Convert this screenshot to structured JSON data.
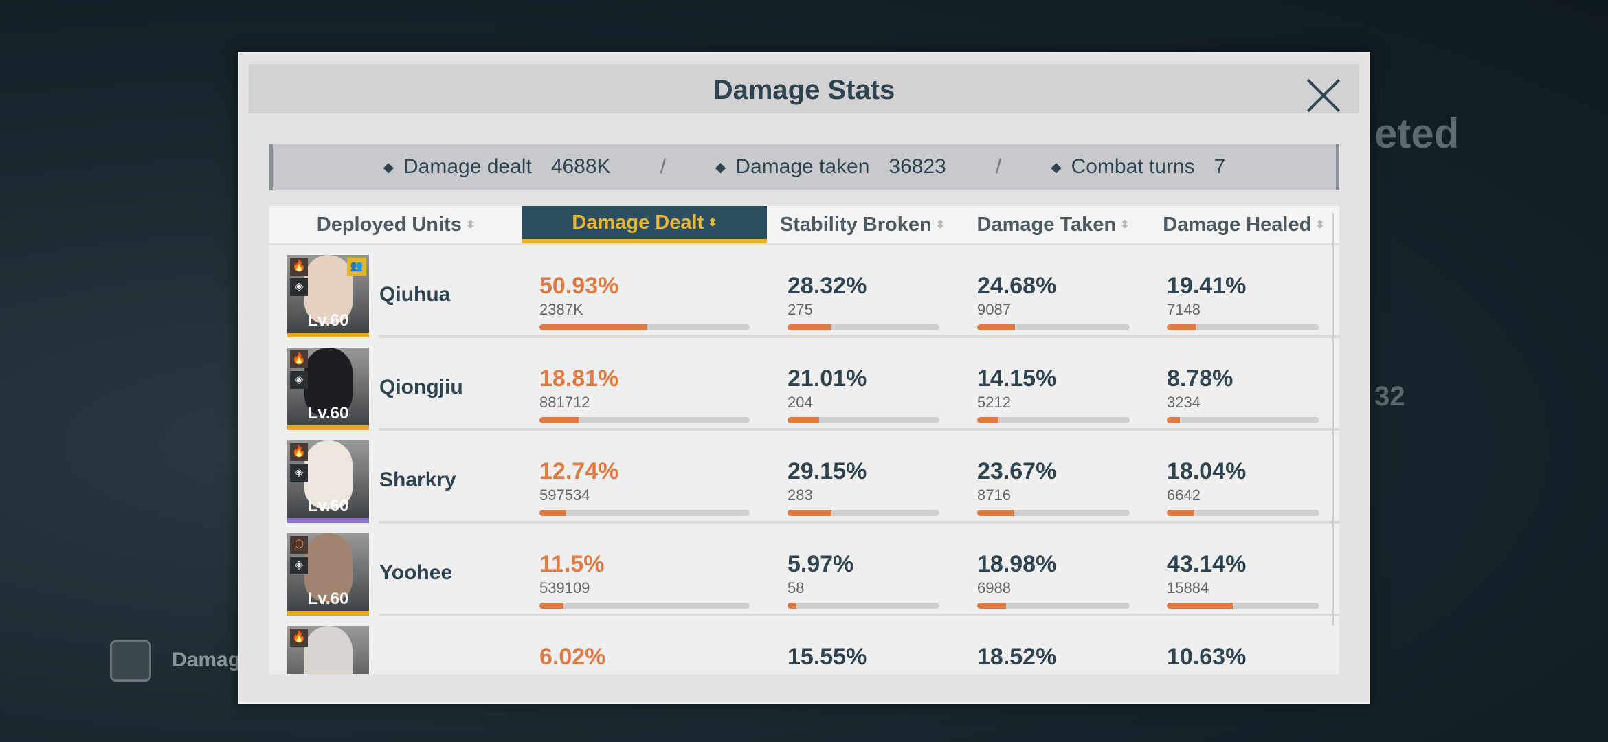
{
  "background": {
    "completed_text": "eted",
    "stat_text": "32",
    "damage_button_label": "Damag"
  },
  "modal": {
    "title": "Damage Stats",
    "summary": [
      {
        "label": "Damage dealt",
        "value": "4688K"
      },
      {
        "label": "Damage taken",
        "value": "36823"
      },
      {
        "label": "Combat turns",
        "value": "7"
      }
    ],
    "separator": "/",
    "columns": [
      "Deployed Units",
      "Damage Dealt",
      "Stability Broken",
      "Damage Taken",
      "Damage Healed"
    ],
    "active_column": 1,
    "units": [
      {
        "name": "Qiuhua",
        "level": "Lv.60",
        "rarity_color": "#e5a91c",
        "support": true,
        "element_icon": "fire-icon",
        "class_icon": "class-diamond-icon",
        "stats": [
          {
            "pct": "50.93%",
            "value": "2387K",
            "fraction": 0.5093
          },
          {
            "pct": "28.32%",
            "value": "275",
            "fraction": 0.2832
          },
          {
            "pct": "24.68%",
            "value": "9087",
            "fraction": 0.2468
          },
          {
            "pct": "19.41%",
            "value": "7148",
            "fraction": 0.1941
          }
        ]
      },
      {
        "name": "Qiongjiu",
        "level": "Lv.60",
        "rarity_color": "#e5a91c",
        "support": false,
        "element_icon": "fire-icon",
        "class_icon": "class-diamond-icon",
        "stats": [
          {
            "pct": "18.81%",
            "value": "881712",
            "fraction": 0.1881
          },
          {
            "pct": "21.01%",
            "value": "204",
            "fraction": 0.2101
          },
          {
            "pct": "14.15%",
            "value": "5212",
            "fraction": 0.1415
          },
          {
            "pct": "8.78%",
            "value": "3234",
            "fraction": 0.0878
          }
        ]
      },
      {
        "name": "Sharkry",
        "level": "Lv.60",
        "rarity_color": "#8a6fd0",
        "support": false,
        "element_icon": "fire-icon",
        "class_icon": "class-diamond-icon",
        "stats": [
          {
            "pct": "12.74%",
            "value": "597534",
            "fraction": 0.1274
          },
          {
            "pct": "29.15%",
            "value": "283",
            "fraction": 0.2915
          },
          {
            "pct": "23.67%",
            "value": "8716",
            "fraction": 0.2367
          },
          {
            "pct": "18.04%",
            "value": "6642",
            "fraction": 0.1804
          }
        ]
      },
      {
        "name": "Yoohee",
        "level": "Lv.60",
        "rarity_color": "#e5a91c",
        "support": false,
        "element_icon": "physical-icon",
        "class_icon": "class-diamond-icon",
        "stats": [
          {
            "pct": "11.5%",
            "value": "539109",
            "fraction": 0.115
          },
          {
            "pct": "5.97%",
            "value": "58",
            "fraction": 0.0597
          },
          {
            "pct": "18.98%",
            "value": "6988",
            "fraction": 0.1898
          },
          {
            "pct": "43.14%",
            "value": "15884",
            "fraction": 0.4314
          }
        ]
      },
      {
        "name": "",
        "level": "",
        "rarity_color": "#e5a91c",
        "support": false,
        "element_icon": "fire-icon",
        "class_icon": "",
        "stats": [
          {
            "pct": "6.02%",
            "value": "",
            "fraction": 0.0602
          },
          {
            "pct": "15.55%",
            "value": "",
            "fraction": 0.1555
          },
          {
            "pct": "18.52%",
            "value": "",
            "fraction": 0.1852
          },
          {
            "pct": "10.63%",
            "value": "",
            "fraction": 0.1063
          }
        ]
      }
    ]
  },
  "colors": {
    "accent": "#e07a43",
    "header_active_bg": "#2c4d5e",
    "header_active_text": "#eab62d",
    "title": "#2f4450"
  }
}
